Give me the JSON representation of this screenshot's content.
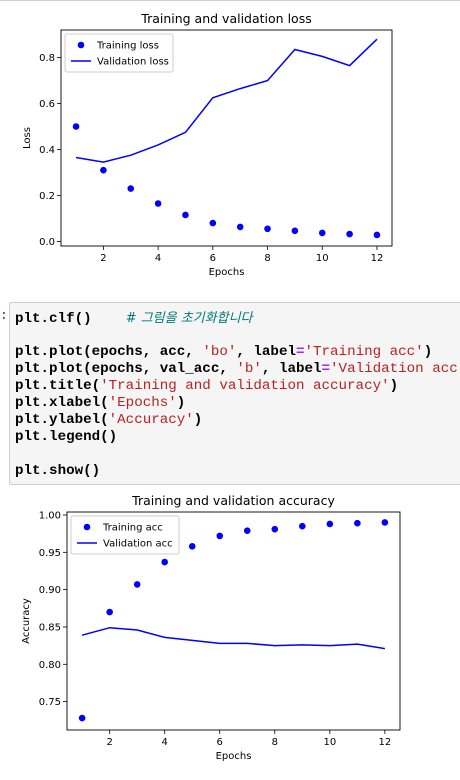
{
  "chart_data": [
    {
      "type": "scatter+line",
      "title": "Training and validation loss",
      "xlabel": "Epochs",
      "ylabel": "Loss",
      "xlim": [
        0.45,
        12.55
      ],
      "ylim": [
        -0.02,
        0.92
      ],
      "xticks": [
        2,
        4,
        6,
        8,
        10,
        12
      ],
      "yticks": [
        0.0,
        0.2,
        0.4,
        0.6,
        0.8
      ],
      "ytick_labels": [
        "0.0",
        "0.2",
        "0.4",
        "0.6",
        "0.8"
      ],
      "legend_position": "upper-left",
      "series": [
        {
          "name": "Training loss",
          "style": "dots",
          "color": "#0000ff",
          "x": [
            1,
            2,
            3,
            4,
            5,
            6,
            7,
            8,
            9,
            10,
            11,
            12
          ],
          "y": [
            0.5,
            0.31,
            0.23,
            0.165,
            0.115,
            0.08,
            0.063,
            0.055,
            0.046,
            0.037,
            0.032,
            0.028
          ]
        },
        {
          "name": "Validation loss",
          "style": "line",
          "color": "#0000ff",
          "x": [
            1,
            2,
            3,
            4,
            5,
            6,
            7,
            8,
            9,
            10,
            11,
            12
          ],
          "y": [
            0.365,
            0.345,
            0.375,
            0.42,
            0.475,
            0.625,
            0.665,
            0.7,
            0.835,
            0.805,
            0.765,
            0.88
          ]
        }
      ]
    },
    {
      "type": "scatter+line",
      "title": "Training and validation accuracy",
      "xlabel": "Epochs",
      "ylabel": "Accuracy",
      "xlim": [
        0.45,
        12.55
      ],
      "ylim": [
        0.712,
        1.004
      ],
      "xticks": [
        2,
        4,
        6,
        8,
        10,
        12
      ],
      "yticks": [
        0.75,
        0.8,
        0.85,
        0.9,
        0.95,
        1.0
      ],
      "ytick_labels": [
        "0.75",
        "0.80",
        "0.85",
        "0.90",
        "0.95",
        "1.00"
      ],
      "legend_position": "upper-left",
      "series": [
        {
          "name": "Training acc",
          "style": "dots",
          "color": "#0000ff",
          "x": [
            1,
            2,
            3,
            4,
            5,
            6,
            7,
            8,
            9,
            10,
            11,
            12
          ],
          "y": [
            0.728,
            0.87,
            0.907,
            0.937,
            0.958,
            0.972,
            0.979,
            0.981,
            0.985,
            0.988,
            0.989,
            0.99
          ]
        },
        {
          "name": "Validation acc",
          "style": "line",
          "color": "#0000ff",
          "x": [
            1,
            2,
            3,
            4,
            5,
            6,
            7,
            8,
            9,
            10,
            11,
            12
          ],
          "y": [
            0.839,
            0.849,
            0.846,
            0.836,
            0.832,
            0.828,
            0.828,
            0.825,
            0.826,
            0.825,
            0.827,
            0.821
          ]
        }
      ]
    }
  ],
  "code_cell": {
    "prompt": ":",
    "lines": [
      [
        {
          "t": "plt.clf()    ",
          "c": "pl"
        },
        {
          "t": "# 그림을 초기화합니다",
          "c": "cm"
        }
      ],
      [],
      [
        {
          "t": "plt.plot(epochs, acc, ",
          "c": "pl"
        },
        {
          "t": "'bo'",
          "c": "st"
        },
        {
          "t": ", label",
          "c": "pl"
        },
        {
          "t": "=",
          "c": "op"
        },
        {
          "t": "'Training acc'",
          "c": "st"
        },
        {
          "t": ")",
          "c": "pl"
        }
      ],
      [
        {
          "t": "plt.plot(epochs, val_acc, ",
          "c": "pl"
        },
        {
          "t": "'b'",
          "c": "st"
        },
        {
          "t": ", label",
          "c": "pl"
        },
        {
          "t": "=",
          "c": "op"
        },
        {
          "t": "'Validation acc'",
          "c": "st"
        },
        {
          "t": ")",
          "c": "pl"
        }
      ],
      [
        {
          "t": "plt.title(",
          "c": "pl"
        },
        {
          "t": "'Training and validation accuracy'",
          "c": "st"
        },
        {
          "t": ")",
          "c": "pl"
        }
      ],
      [
        {
          "t": "plt.xlabel(",
          "c": "pl"
        },
        {
          "t": "'Epochs'",
          "c": "st"
        },
        {
          "t": ")",
          "c": "pl"
        }
      ],
      [
        {
          "t": "plt.ylabel(",
          "c": "pl"
        },
        {
          "t": "'Accuracy'",
          "c": "st"
        },
        {
          "t": ")",
          "c": "pl"
        }
      ],
      [
        {
          "t": "plt.legend()",
          "c": "pl"
        }
      ],
      [],
      [
        {
          "t": "plt.show()",
          "c": "pl"
        }
      ]
    ]
  }
}
